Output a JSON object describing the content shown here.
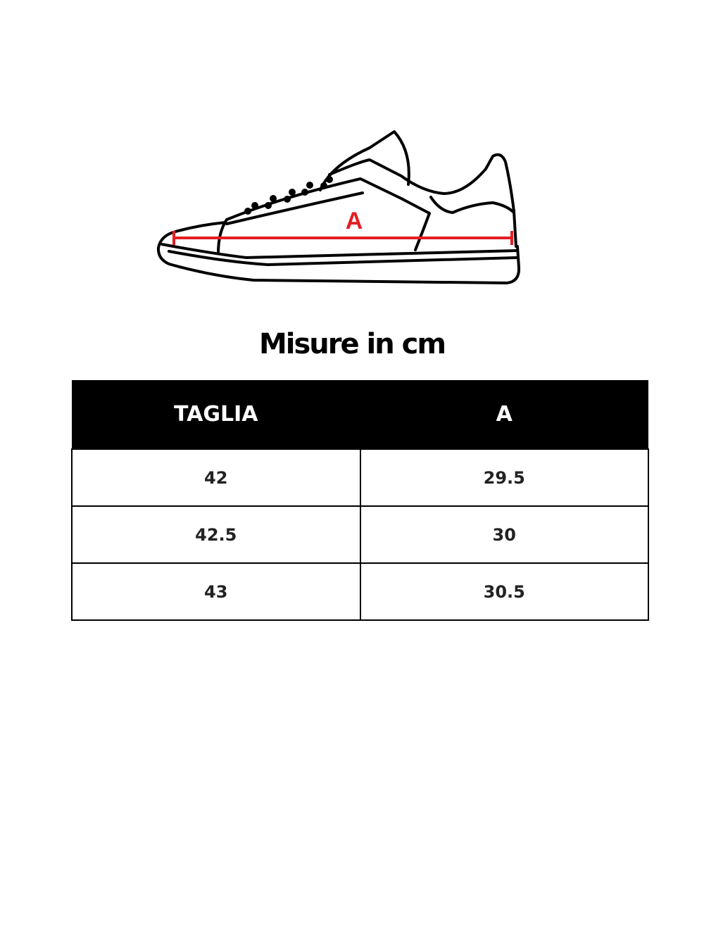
{
  "illustration": {
    "measure_label": "A",
    "measure_color": "#e31e24"
  },
  "title": "Misure in cm",
  "table": {
    "headers": [
      "TAGLIA",
      "A"
    ],
    "rows": [
      [
        "42",
        "29.5"
      ],
      [
        "42.5",
        "30"
      ],
      [
        "43",
        "30.5"
      ]
    ]
  }
}
